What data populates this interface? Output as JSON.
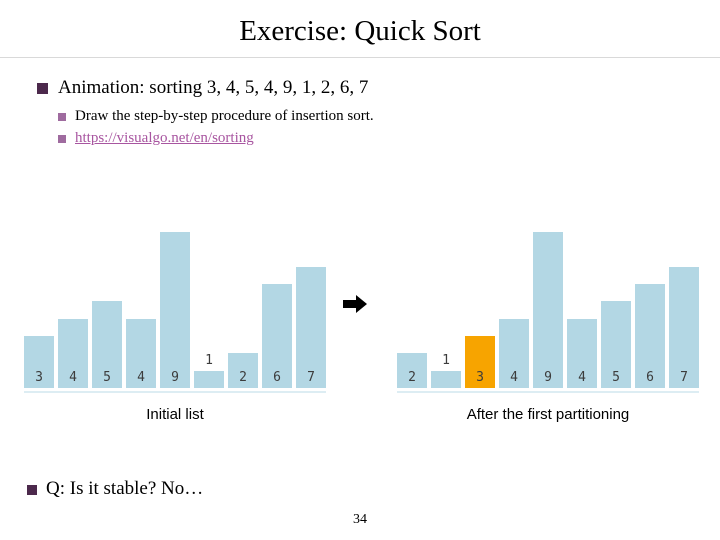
{
  "slide": {
    "title": "Exercise: Quick Sort",
    "page_number": "34"
  },
  "bullets": {
    "main": "Animation: sorting 3, 4, 5, 4, 9, 1, 2, 6, 7",
    "sub1": "Draw the step-by-step procedure of insertion sort.",
    "link": "https://visualgo.net/en/sorting",
    "question": "Q: Is it stable? No…"
  },
  "chart_data": [
    {
      "type": "bar",
      "caption": "Initial list",
      "values": [
        3,
        4,
        5,
        4,
        9,
        1,
        2,
        6,
        7
      ],
      "bar_labels": [
        "3",
        "4",
        "5",
        "4",
        "9",
        "1",
        "2",
        "6",
        "7"
      ],
      "highlight_index": -1,
      "ylim": [
        0,
        9
      ],
      "legend": "none",
      "grid": false
    },
    {
      "type": "bar",
      "caption": "After the first partitioning",
      "values": [
        2,
        1,
        3,
        4,
        9,
        4,
        5,
        6,
        7
      ],
      "bar_labels": [
        "2",
        "1",
        "3",
        "4",
        "9",
        "4",
        "5",
        "6",
        "7"
      ],
      "highlight_index": 2,
      "ylim": [
        0,
        9
      ],
      "legend": "none",
      "grid": false
    }
  ],
  "colors": {
    "bar": "#b3d7e4",
    "bar_highlight": "#f7a400",
    "bullet_main": "#4c294c",
    "bullet_sub": "#9f6b9f",
    "link": "#a855a0",
    "title_rule": "#d9d9d9",
    "bar_label": "#3c3c3c",
    "arrow": "#000000"
  }
}
